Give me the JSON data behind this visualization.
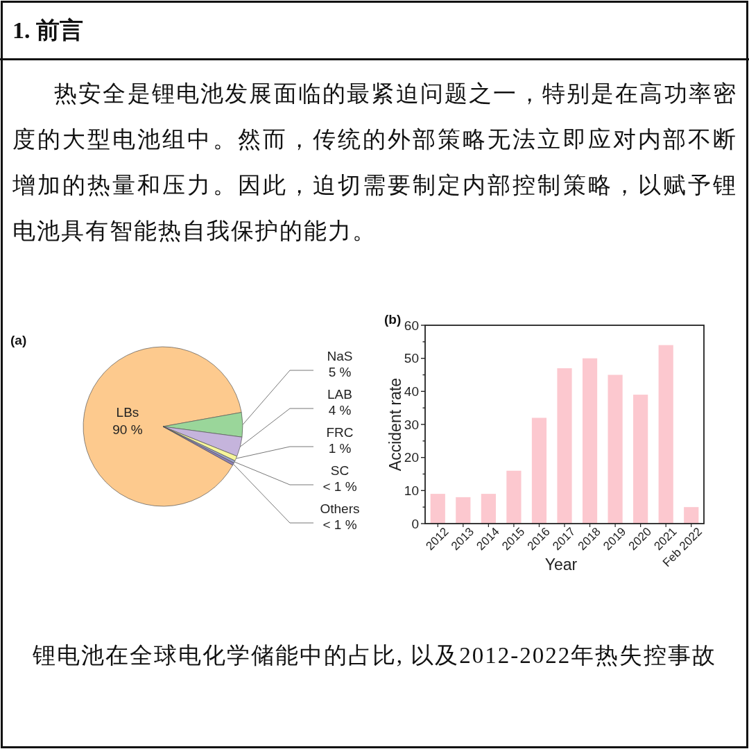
{
  "chart_data": [
    {
      "type": "pie",
      "title": "1. 前言",
      "subtitle": "热安全是锂电池发展面临的最紧迫问题之一，特别是在高功率密度的大型电池组中。然而，传统的外部策略无法立即应对内部不断增加的热量和压力。因此，迫切需要制定内部控制策略，以赋予锂电池具有智能热自我保护的能力。",
      "annotations": [
        "(a)",
        "锂电池在全球电化学储能中的占比, 以及2012-2022年热失控事故"
      ],
      "categories": [
        "LBs",
        "NaS",
        "LAB",
        "FRC",
        "SC",
        "Others"
      ],
      "values": [
        90,
        5,
        4,
        1,
        0.5,
        0.5
      ],
      "value_labels": [
        "90 %",
        "5 %",
        "4 %",
        "1 %",
        "< 1 %",
        "< 1 %"
      ],
      "colors": [
        "#fdca8e",
        "#9ad69a",
        "#c5b4dc",
        "#f6f59b",
        "#9ba3cc",
        "#8e80b8"
      ]
    },
    {
      "type": "bar",
      "title": "(b)",
      "xlabel": "Year",
      "ylabel": "Accident rate",
      "categories": [
        "2012",
        "2013",
        "2014",
        "2015",
        "2016",
        "2017",
        "2018",
        "2019",
        "2020",
        "2021",
        "Feb 2022"
      ],
      "values": [
        9,
        8,
        9,
        16,
        32,
        47,
        50,
        45,
        39,
        54,
        5
      ],
      "color": "#fcc8cf",
      "ylim": [
        0,
        60
      ],
      "yticks": [
        0,
        {
          "value": 5,
          "label": null
        },
        10,
        {
          "value": 15,
          "label": null
        },
        20,
        {
          "value": 25,
          "label": null
        },
        30,
        {
          "value": 35,
          "label": null
        },
        40,
        {
          "value": 45,
          "label": null
        },
        50,
        {
          "value": 55,
          "label": null
        },
        60
      ]
    }
  ]
}
